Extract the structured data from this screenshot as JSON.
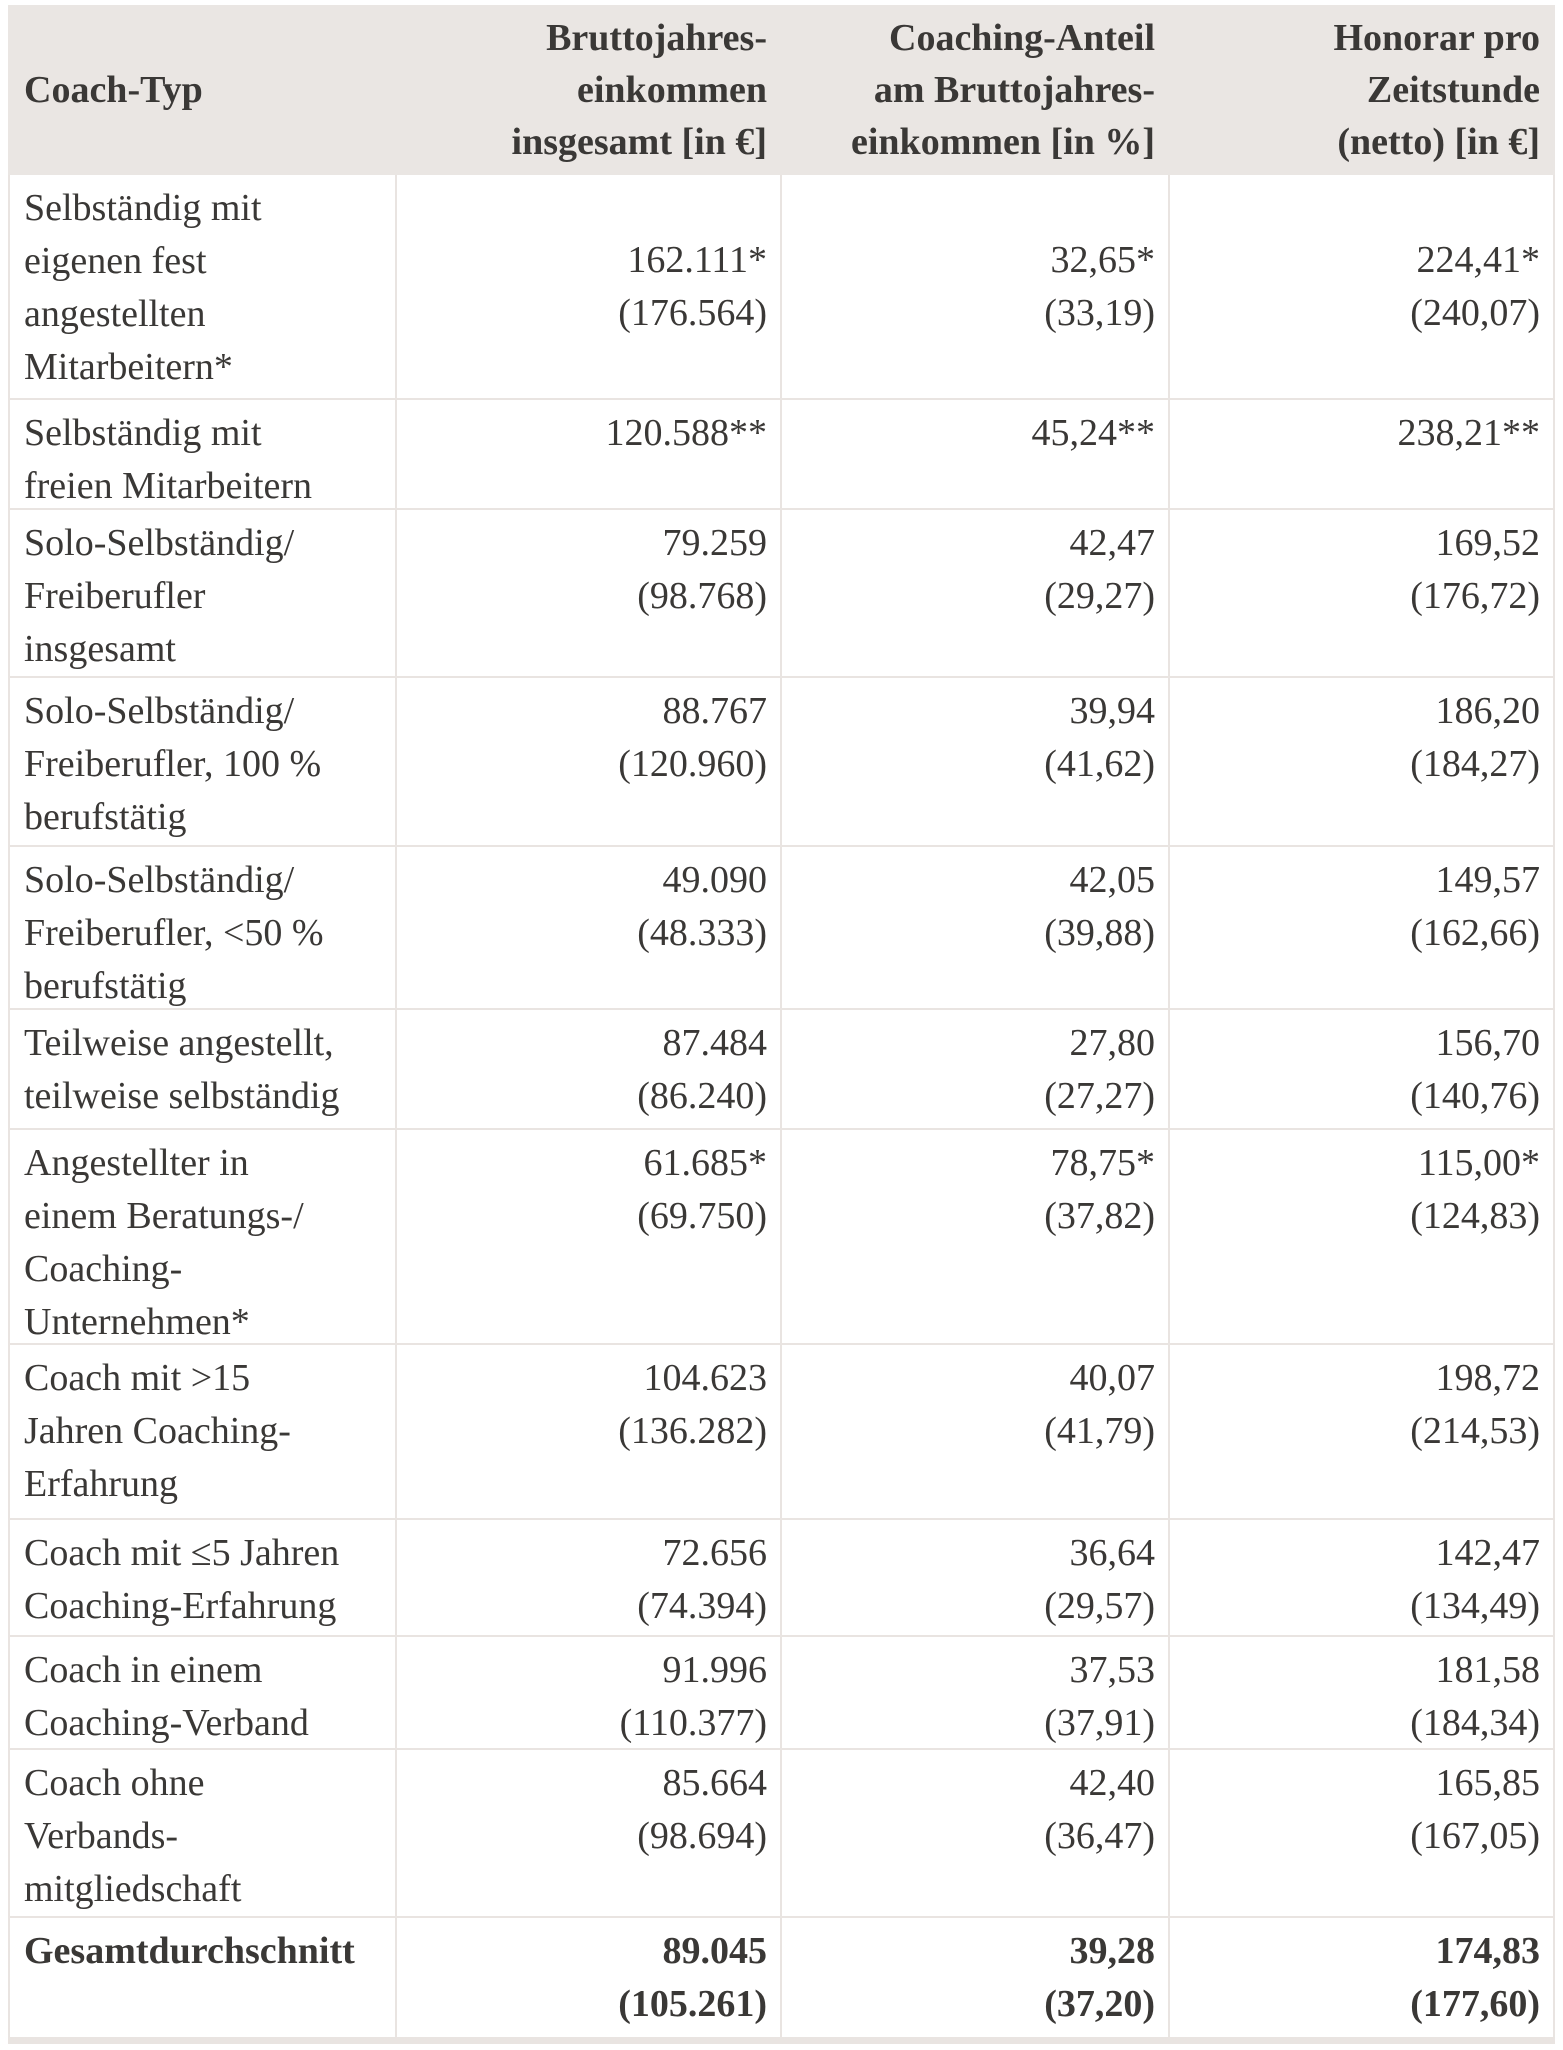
{
  "table": {
    "title": "Coach income statistics table",
    "columns": [
      {
        "label_lines": [
          "Coach-Typ"
        ]
      },
      {
        "label_lines": [
          "Bruttojahres-",
          "einkommen",
          "insgesamt [in €]"
        ]
      },
      {
        "label_lines": [
          "Coaching-Anteil",
          "am Bruttojahres-",
          "einkommen [in %]"
        ]
      },
      {
        "label_lines": [
          "Honorar pro",
          "Zeitstunde",
          "(netto) [in €]"
        ]
      }
    ],
    "rows": [
      {
        "coach_type_lines": [
          "Selbständig mit",
          "eigenen fest",
          "angestellten",
          "Mitarbeitern*"
        ],
        "bruttojahreseinkommen": {
          "value": "162.111*",
          "paren": "(176.564)"
        },
        "coaching_anteil": {
          "value": "32,65*",
          "paren": "(33,19)"
        },
        "honorar": {
          "value": "224,41*",
          "paren": "(240,07)"
        },
        "is_summary": false
      },
      {
        "coach_type_lines": [
          "Selbständig mit",
          "freien Mitarbeitern"
        ],
        "bruttojahreseinkommen": {
          "value": "120.588**",
          "paren": ""
        },
        "coaching_anteil": {
          "value": "45,24**",
          "paren": ""
        },
        "honorar": {
          "value": "238,21**",
          "paren": ""
        },
        "is_summary": false
      },
      {
        "coach_type_lines": [
          "Solo-Selbständig/",
          "Freiberufler",
          "insgesamt"
        ],
        "bruttojahreseinkommen": {
          "value": "79.259",
          "paren": "(98.768)"
        },
        "coaching_anteil": {
          "value": "42,47",
          "paren": "(29,27)"
        },
        "honorar": {
          "value": "169,52",
          "paren": "(176,72)"
        },
        "is_summary": false
      },
      {
        "coach_type_lines": [
          "Solo-Selbständig/",
          "Freiberufler, 100 %",
          "berufstätig"
        ],
        "bruttojahreseinkommen": {
          "value": "88.767",
          "paren": "(120.960)"
        },
        "coaching_anteil": {
          "value": "39,94",
          "paren": "(41,62)"
        },
        "honorar": {
          "value": "186,20",
          "paren": "(184,27)"
        },
        "is_summary": false
      },
      {
        "coach_type_lines": [
          "Solo-Selbständig/",
          "Freiberufler, <50 %",
          "berufstätig"
        ],
        "bruttojahreseinkommen": {
          "value": "49.090",
          "paren": "(48.333)"
        },
        "coaching_anteil": {
          "value": "42,05",
          "paren": "(39,88)"
        },
        "honorar": {
          "value": "149,57",
          "paren": "(162,66)"
        },
        "is_summary": false
      },
      {
        "coach_type_lines": [
          "Teilweise angestellt,",
          "teilweise selbständig"
        ],
        "bruttojahreseinkommen": {
          "value": "87.484",
          "paren": "(86.240)"
        },
        "coaching_anteil": {
          "value": "27,80",
          "paren": "(27,27)"
        },
        "honorar": {
          "value": "156,70",
          "paren": "(140,76)"
        },
        "is_summary": false
      },
      {
        "coach_type_lines": [
          "Angestellter in",
          "einem Beratungs-/",
          "Coaching-",
          "Unternehmen*"
        ],
        "bruttojahreseinkommen": {
          "value": "61.685*",
          "paren": "(69.750)"
        },
        "coaching_anteil": {
          "value": "78,75*",
          "paren": "(37,82)"
        },
        "honorar": {
          "value": "115,00*",
          "paren": "(124,83)"
        },
        "is_summary": false
      },
      {
        "coach_type_lines": [
          "Coach mit >15",
          "Jahren Coaching-",
          "Erfahrung"
        ],
        "bruttojahreseinkommen": {
          "value": "104.623",
          "paren": "(136.282)"
        },
        "coaching_anteil": {
          "value": "40,07",
          "paren": "(41,79)"
        },
        "honorar": {
          "value": "198,72",
          "paren": "(214,53)"
        },
        "is_summary": false
      },
      {
        "coach_type_lines": [
          "Coach mit ≤5 Jahren",
          "Coaching-Erfahrung"
        ],
        "bruttojahreseinkommen": {
          "value": "72.656",
          "paren": "(74.394)"
        },
        "coaching_anteil": {
          "value": "36,64",
          "paren": "(29,57)"
        },
        "honorar": {
          "value": "142,47",
          "paren": "(134,49)"
        },
        "is_summary": false
      },
      {
        "coach_type_lines": [
          "Coach in einem",
          "Coaching-Verband"
        ],
        "bruttojahreseinkommen": {
          "value": "91.996",
          "paren": "(110.377)"
        },
        "coaching_anteil": {
          "value": "37,53",
          "paren": "(37,91)"
        },
        "honorar": {
          "value": "181,58",
          "paren": "(184,34)"
        },
        "is_summary": false
      },
      {
        "coach_type_lines": [
          "Coach ohne",
          "Verbands-",
          "mitgliedschaft"
        ],
        "bruttojahreseinkommen": {
          "value": "85.664",
          "paren": "(98.694)"
        },
        "coaching_anteil": {
          "value": "42,40",
          "paren": "(36,47)"
        },
        "honorar": {
          "value": "165,85",
          "paren": "(167,05)"
        },
        "is_summary": false
      },
      {
        "coach_type_lines": [
          "Gesamtdurchschnitt"
        ],
        "bruttojahreseinkommen": {
          "value": "89.045",
          "paren": "(105.261)"
        },
        "coaching_anteil": {
          "value": "39,28",
          "paren": "(37,20)"
        },
        "honorar": {
          "value": "174,83",
          "paren": "(177,60)"
        },
        "is_summary": true
      }
    ],
    "colors": {
      "header_background": "#eae6e3",
      "grid_line": "#e9e4e1",
      "text": "#3a3836",
      "cell_background": "#ffffff"
    }
  }
}
